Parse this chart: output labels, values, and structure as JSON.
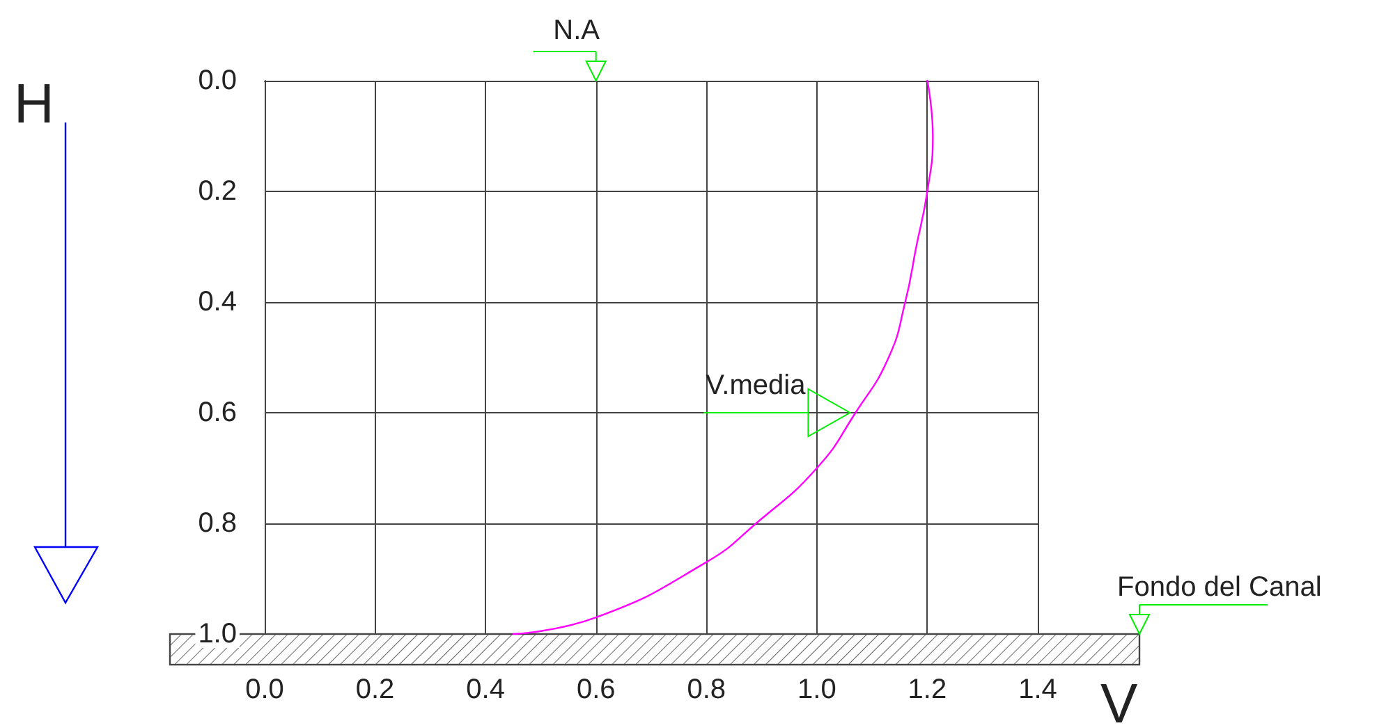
{
  "chart_data": {
    "type": "line",
    "xlabel": "V",
    "ylabel": "H",
    "xlim": [
      0,
      1.4
    ],
    "ylim": [
      1,
      0
    ],
    "xticks": [
      {
        "value": 0,
        "label": "0.0"
      },
      {
        "value": 0.2,
        "label": "0.2"
      },
      {
        "value": 0.4,
        "label": "0.4"
      },
      {
        "value": 0.6,
        "label": "0.6"
      },
      {
        "value": 0.8,
        "label": "0.8"
      },
      {
        "value": 1,
        "label": "1.0"
      },
      {
        "value": 1.2,
        "label": "1.2"
      },
      {
        "value": 1.4,
        "label": "1.4"
      }
    ],
    "yticks": [
      {
        "value": 0,
        "label": "0.0"
      },
      {
        "value": 0.2,
        "label": "0.2"
      },
      {
        "value": 0.4,
        "label": "0.4"
      },
      {
        "value": 0.6,
        "label": "0.6"
      },
      {
        "value": 0.8,
        "label": "0.8"
      },
      {
        "value": 1,
        "label": "1.0"
      }
    ],
    "grid": true,
    "marker": "none",
    "line_style": "solid",
    "series": [
      {
        "color": "#ff00ff",
        "x": [
          1.2,
          1.21,
          1.2,
          1.18,
          1.16,
          1.13,
          1.07,
          1.0,
          0.89,
          0.8,
          0.6,
          0.45
        ],
        "values": [
          0,
          0.1,
          0.2,
          0.3,
          0.4,
          0.5,
          0.6,
          0.7,
          0.8,
          0.87,
          0.97,
          1.0
        ]
      }
    ],
    "annotations": [
      "N.A",
      {
        "text": "V.media",
        "x": 1.06,
        "y": 0.6
      },
      "Fondo del Canal"
    ]
  }
}
